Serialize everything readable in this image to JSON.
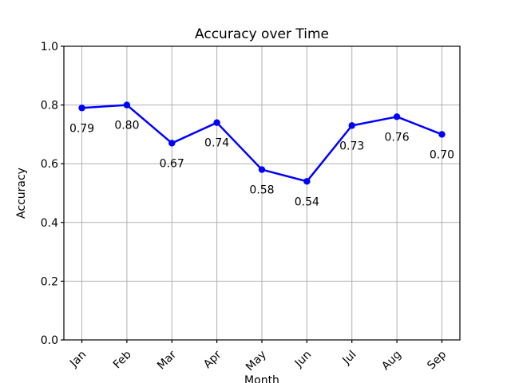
{
  "chart_data": {
    "type": "line",
    "title": "Accuracy over Time",
    "xlabel": "Month",
    "ylabel": "Accuracy",
    "categories": [
      "Jan",
      "Feb",
      "Mar",
      "Apr",
      "May",
      "Jun",
      "Jul",
      "Aug",
      "Sep"
    ],
    "values": [
      0.79,
      0.8,
      0.67,
      0.74,
      0.58,
      0.54,
      0.73,
      0.76,
      0.7
    ],
    "point_labels": [
      "0.79",
      "0.80",
      "0.67",
      "0.74",
      "0.58",
      "0.54",
      "0.73",
      "0.76",
      "0.70"
    ],
    "ylim": [
      0.0,
      1.0
    ],
    "yticks": [
      0.0,
      0.2,
      0.4,
      0.6,
      0.8,
      1.0
    ],
    "ytick_labels": [
      "0.0",
      "0.2",
      "0.4",
      "0.6",
      "0.8",
      "1.0"
    ],
    "grid": true,
    "legend": "none",
    "xtick_rotation": 45,
    "line_color": "#0000ff",
    "marker": "circle",
    "grid_color": "#b0b0b0",
    "spine_color": "#000000",
    "background_color": "#ffffff"
  }
}
